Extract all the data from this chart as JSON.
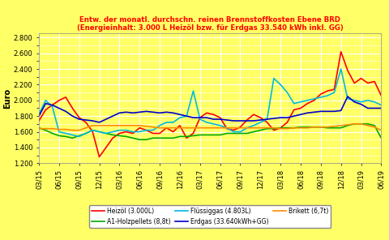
{
  "title_line1": "Entw. der monatl. durchschn. reinen Brennstoffkosten Ebene BRD",
  "title_line2": "(Energieinhalt: 3.000 L Heizöl bzw. für Erdgas 33.540 kWh inkl. GG)",
  "ylabel": "Euro",
  "ylim": [
    1.2,
    2.85
  ],
  "yticks": [
    1.2,
    1.4,
    1.6,
    1.8,
    2.0,
    2.2,
    2.4,
    2.6,
    2.8
  ],
  "background_color": "#FFFF66",
  "title_color": "#FF0000",
  "x_labels": [
    "03/15",
    "06/15",
    "09/15",
    "12/15",
    "03/16",
    "06/16",
    "09/16",
    "12/16",
    "03/17",
    "06/17",
    "09/17",
    "12/17",
    "03/18",
    "06/18",
    "09/18",
    "12/18",
    "03/19",
    "06/19"
  ],
  "heizoel_color": "#FF0000",
  "holzpellets_color": "#00AA00",
  "fluessiggas_color": "#00BBDD",
  "erdgas_color": "#0000CC",
  "brikett_color": "#FF8C00",
  "heizoel": [
    1.74,
    1.88,
    1.94,
    2.0,
    2.04,
    1.9,
    1.78,
    1.72,
    1.6,
    1.28,
    1.4,
    1.52,
    1.58,
    1.6,
    1.58,
    1.65,
    1.62,
    1.58,
    1.58,
    1.65,
    1.6,
    1.68,
    1.52,
    1.58,
    1.78,
    1.84,
    1.82,
    1.78,
    1.64,
    1.62,
    1.66,
    1.75,
    1.82,
    1.78,
    1.72,
    1.62,
    1.65,
    1.72,
    1.88,
    1.9,
    1.96,
    2.0,
    2.08,
    2.12,
    2.14,
    2.62,
    2.38,
    2.22,
    2.28,
    2.22,
    2.24,
    2.06
  ],
  "holzpellets": [
    1.65,
    1.62,
    1.58,
    1.55,
    1.54,
    1.52,
    1.55,
    1.58,
    1.62,
    1.6,
    1.58,
    1.56,
    1.55,
    1.54,
    1.52,
    1.5,
    1.5,
    1.52,
    1.52,
    1.52,
    1.52,
    1.54,
    1.54,
    1.55,
    1.56,
    1.56,
    1.56,
    1.56,
    1.58,
    1.58,
    1.58,
    1.58,
    1.6,
    1.62,
    1.64,
    1.64,
    1.65,
    1.65,
    1.65,
    1.66,
    1.66,
    1.66,
    1.66,
    1.65,
    1.65,
    1.65,
    1.68,
    1.7,
    1.7,
    1.7,
    1.68,
    1.52
  ],
  "fluessiggas": [
    1.82,
    2.0,
    1.92,
    1.6,
    1.58,
    1.56,
    1.54,
    1.58,
    1.62,
    1.6,
    1.58,
    1.6,
    1.62,
    1.62,
    1.6,
    1.6,
    1.62,
    1.62,
    1.68,
    1.72,
    1.72,
    1.78,
    1.8,
    2.12,
    1.76,
    1.72,
    1.7,
    1.68,
    1.65,
    1.6,
    1.6,
    1.65,
    1.68,
    1.72,
    1.76,
    2.28,
    2.2,
    2.1,
    1.96,
    1.98,
    2.0,
    2.02,
    2.04,
    2.06,
    2.1,
    2.4,
    2.02,
    2.0,
    1.98,
    2.0,
    1.98,
    1.94
  ],
  "erdgas": [
    1.8,
    1.96,
    1.94,
    1.9,
    1.86,
    1.8,
    1.76,
    1.75,
    1.74,
    1.72,
    1.76,
    1.8,
    1.84,
    1.85,
    1.84,
    1.85,
    1.86,
    1.85,
    1.84,
    1.85,
    1.84,
    1.82,
    1.8,
    1.78,
    1.78,
    1.78,
    1.76,
    1.76,
    1.75,
    1.74,
    1.74,
    1.74,
    1.74,
    1.75,
    1.76,
    1.77,
    1.78,
    1.78,
    1.8,
    1.82,
    1.84,
    1.85,
    1.86,
    1.86,
    1.86,
    1.87,
    2.05,
    1.98,
    1.95,
    1.9,
    1.9,
    1.9
  ],
  "brikett": [
    1.64,
    1.64,
    1.64,
    1.63,
    1.63,
    1.62,
    1.62,
    1.65,
    1.68,
    1.68,
    1.68,
    1.68,
    1.68,
    1.68,
    1.68,
    1.68,
    1.67,
    1.66,
    1.65,
    1.65,
    1.65,
    1.65,
    1.65,
    1.65,
    1.65,
    1.65,
    1.65,
    1.65,
    1.65,
    1.65,
    1.65,
    1.65,
    1.65,
    1.65,
    1.65,
    1.65,
    1.64,
    1.64,
    1.65,
    1.65,
    1.65,
    1.66,
    1.66,
    1.66,
    1.67,
    1.68,
    1.69,
    1.7,
    1.7,
    1.68,
    1.66,
    1.62
  ]
}
